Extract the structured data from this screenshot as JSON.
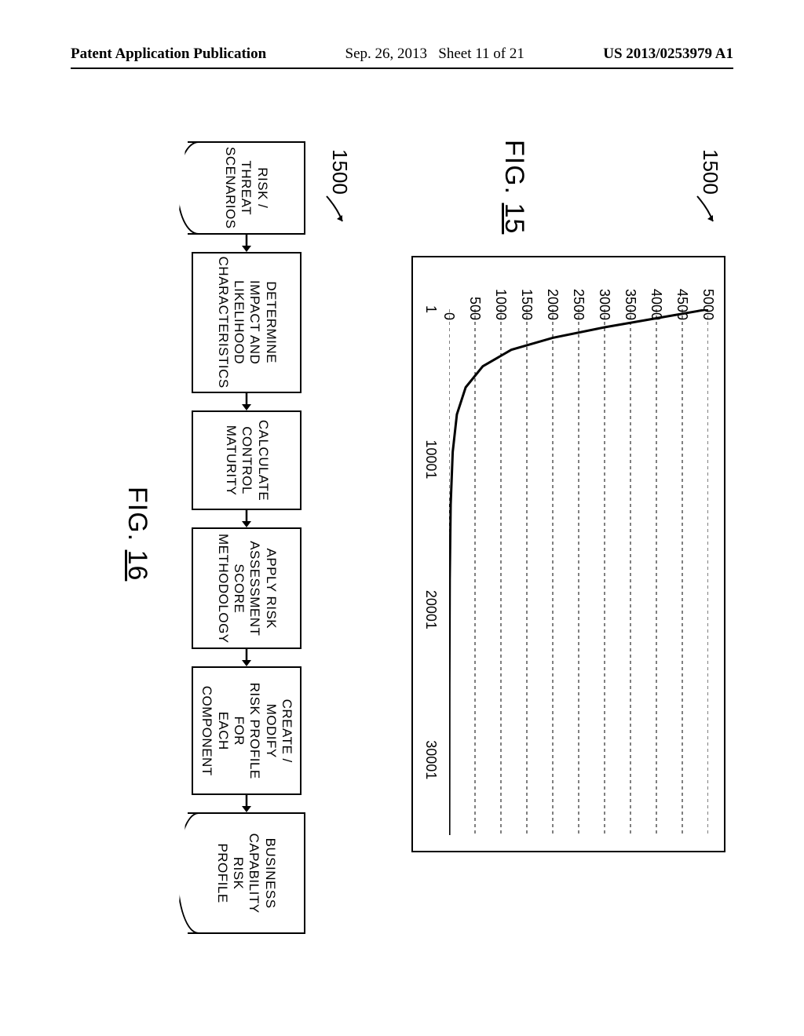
{
  "header": {
    "left": "Patent Application Publication",
    "date": "Sep. 26, 2013",
    "sheet": "Sheet 11 of 21",
    "pubnum": "US 2013/0253979 A1"
  },
  "fig15": {
    "ref": "1500",
    "label_prefix": "FIG. ",
    "label_num": "15",
    "chart": {
      "type": "line",
      "border_color": "#000000",
      "background_color": "#ffffff",
      "grid_color": "#000000",
      "grid_dash": "4,4",
      "line_color": "#000000",
      "line_width": 3,
      "xlim": [
        1,
        35000
      ],
      "ylim": [
        0,
        5000
      ],
      "ytick_step": 500,
      "yticks": [
        0,
        500,
        1000,
        1500,
        2000,
        2500,
        3000,
        3500,
        4000,
        4500,
        5000
      ],
      "xticks": [
        1,
        10001,
        20001,
        30001
      ],
      "tick_fontsize": 18,
      "points": [
        {
          "x": 1,
          "y": 5000
        },
        {
          "x": 600,
          "y": 4000
        },
        {
          "x": 1200,
          "y": 3000
        },
        {
          "x": 1900,
          "y": 2000
        },
        {
          "x": 2700,
          "y": 1200
        },
        {
          "x": 3800,
          "y": 650
        },
        {
          "x": 5200,
          "y": 320
        },
        {
          "x": 7000,
          "y": 150
        },
        {
          "x": 9500,
          "y": 70
        },
        {
          "x": 13000,
          "y": 30
        },
        {
          "x": 18000,
          "y": 12
        },
        {
          "x": 25000,
          "y": 5
        },
        {
          "x": 35000,
          "y": 2
        }
      ]
    }
  },
  "fig16": {
    "ref": "1500",
    "label_prefix": "FIG. ",
    "label_num": "16",
    "flow": {
      "type": "flowchart",
      "border_color": "#000000",
      "border_width": 2.5,
      "font_family": "Arial",
      "fontsize": 17,
      "nodes": [
        {
          "id": 0,
          "shape": "document",
          "label": "RISK /\nTHREAT\nSCENARIOS"
        },
        {
          "id": 1,
          "shape": "rect",
          "label": "DETERMINE\nIMPACT AND\nLIKELIHOOD\nCHARACTERISTICS"
        },
        {
          "id": 2,
          "shape": "rect",
          "label": "CALCULATE\nCONTROL\nMATURITY"
        },
        {
          "id": 3,
          "shape": "rect",
          "label": "APPLY RISK\nASSESSMENT\nSCORE\nMETHODOLOGY"
        },
        {
          "id": 4,
          "shape": "rect",
          "label": "CREATE / MODIFY\nRISK PROFILE FOR\nEACH COMPONENT"
        },
        {
          "id": 5,
          "shape": "document",
          "label": "BUSINESS\nCAPABILITY RISK\nPROFILE"
        }
      ],
      "edges": [
        {
          "from": 0,
          "to": 1
        },
        {
          "from": 1,
          "to": 2
        },
        {
          "from": 2,
          "to": 3
        },
        {
          "from": 3,
          "to": 4
        },
        {
          "from": 4,
          "to": 5
        }
      ]
    }
  }
}
